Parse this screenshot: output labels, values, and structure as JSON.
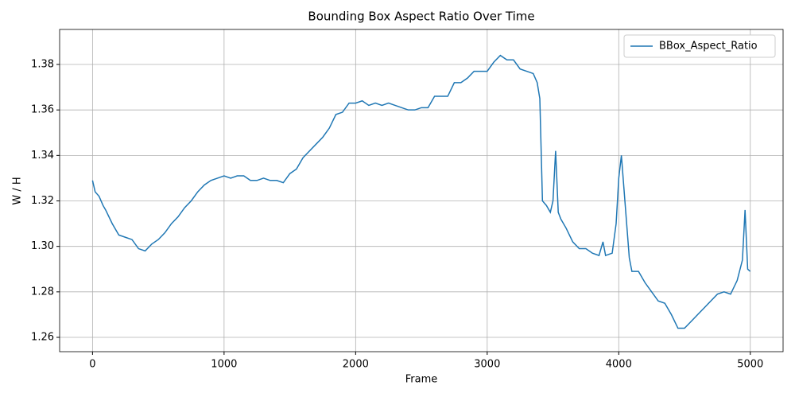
{
  "chart_data": {
    "type": "line",
    "title": "Bounding Box Aspect Ratio Over Time",
    "x_label": "Frame",
    "y_label": "W / H",
    "x": [
      0,
      20,
      50,
      80,
      100,
      150,
      200,
      250,
      300,
      350,
      400,
      450,
      500,
      550,
      600,
      650,
      700,
      750,
      800,
      850,
      900,
      950,
      1000,
      1050,
      1100,
      1150,
      1200,
      1250,
      1300,
      1350,
      1400,
      1450,
      1500,
      1550,
      1600,
      1650,
      1700,
      1750,
      1800,
      1850,
      1900,
      1950,
      2000,
      2050,
      2100,
      2150,
      2200,
      2250,
      2300,
      2350,
      2400,
      2450,
      2500,
      2550,
      2600,
      2700,
      2750,
      2800,
      2850,
      2900,
      2950,
      3000,
      3050,
      3100,
      3150,
      3200,
      3250,
      3300,
      3350,
      3380,
      3400,
      3420,
      3450,
      3480,
      3500,
      3520,
      3540,
      3560,
      3600,
      3650,
      3700,
      3750,
      3800,
      3850,
      3880,
      3900,
      3950,
      3980,
      4000,
      4020,
      4040,
      4060,
      4080,
      4100,
      4150,
      4200,
      4250,
      4300,
      4350,
      4400,
      4450,
      4500,
      4550,
      4600,
      4650,
      4700,
      4750,
      4800,
      4850,
      4900,
      4940,
      4960,
      4980,
      4999
    ],
    "series": [
      {
        "name": "BBox_Aspect_Ratio",
        "color": "#1f77b4",
        "values": [
          1.329,
          1.324,
          1.322,
          1.318,
          1.316,
          1.31,
          1.305,
          1.304,
          1.303,
          1.299,
          1.298,
          1.301,
          1.303,
          1.306,
          1.31,
          1.313,
          1.317,
          1.32,
          1.324,
          1.327,
          1.329,
          1.33,
          1.331,
          1.33,
          1.331,
          1.331,
          1.329,
          1.329,
          1.33,
          1.329,
          1.329,
          1.328,
          1.332,
          1.334,
          1.339,
          1.342,
          1.345,
          1.348,
          1.352,
          1.358,
          1.359,
          1.363,
          1.363,
          1.364,
          1.362,
          1.363,
          1.362,
          1.363,
          1.362,
          1.361,
          1.36,
          1.36,
          1.361,
          1.361,
          1.366,
          1.366,
          1.372,
          1.372,
          1.374,
          1.377,
          1.377,
          1.377,
          1.381,
          1.384,
          1.382,
          1.382,
          1.378,
          1.377,
          1.376,
          1.372,
          1.365,
          1.32,
          1.318,
          1.315,
          1.32,
          1.342,
          1.315,
          1.312,
          1.308,
          1.302,
          1.299,
          1.299,
          1.297,
          1.296,
          1.302,
          1.296,
          1.297,
          1.31,
          1.33,
          1.34,
          1.325,
          1.31,
          1.295,
          1.289,
          1.289,
          1.284,
          1.28,
          1.276,
          1.275,
          1.27,
          1.264,
          1.264,
          1.267,
          1.27,
          1.273,
          1.276,
          1.279,
          1.28,
          1.279,
          1.285,
          1.294,
          1.316,
          1.29,
          1.289
        ]
      }
    ],
    "xlim": [
      -250,
      5249
    ],
    "xticks": [
      0,
      1000,
      2000,
      3000,
      4000,
      5000
    ],
    "ylim": [
      1.2537,
      1.3954
    ],
    "yticks": [
      1.26,
      1.28,
      {
        "value": 1.3,
        "label": "1.30"
      },
      1.32,
      1.34,
      1.36,
      1.38
    ],
    "grid": true,
    "legend": "upper-right"
  }
}
